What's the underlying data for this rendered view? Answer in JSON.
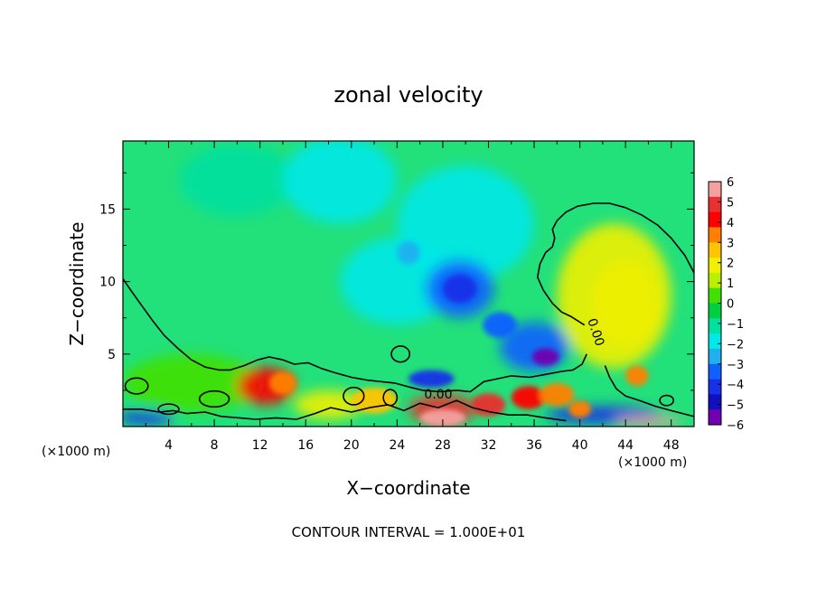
{
  "chart_data": {
    "type": "heatmap",
    "title": "zonal velocity",
    "xlabel": "X−coordinate",
    "ylabel": "Z−coordinate",
    "x_unit_left": "(×1000 m)",
    "x_unit_right": "(×1000 m)",
    "xlim": [
      0,
      50
    ],
    "ylim": [
      0,
      19.7
    ],
    "x_ticks": [
      "4",
      "8",
      "12",
      "16",
      "20",
      "24",
      "28",
      "32",
      "36",
      "40",
      "44",
      "48"
    ],
    "y_ticks": [
      "5",
      "10",
      "15"
    ],
    "colorbar": {
      "labels": [
        "6",
        "5",
        "4",
        "3",
        "2",
        "1",
        "0",
        "−1",
        "−2",
        "−3",
        "−4",
        "−5",
        "−6"
      ],
      "range": [
        -6,
        6
      ],
      "colors": [
        "#f4a0a0",
        "#e83030",
        "#ff0000",
        "#ff8000",
        "#ffc400",
        "#f0f000",
        "#b8f000",
        "#40e000",
        "#00d040",
        "#00e0a0",
        "#00e8e8",
        "#20b0f0",
        "#1060ff",
        "#1830e8",
        "#1010c0",
        "#7000b0"
      ]
    },
    "contour_labels": [
      "0.00",
      "0.00"
    ],
    "footer": "CONTOUR INTERVAL = 1.000E+01",
    "field_blobs": [
      {
        "x": 10,
        "z": 17,
        "rx": 5,
        "rz": 2.5,
        "value": -1.2
      },
      {
        "x": 19,
        "z": 17,
        "rx": 5,
        "rz": 3,
        "value": -2.0
      },
      {
        "x": 30,
        "z": 14,
        "rx": 6,
        "rz": 4,
        "value": -2.0
      },
      {
        "x": 24,
        "z": 10,
        "rx": 5,
        "rz": 3,
        "value": -1.8
      },
      {
        "x": 29.5,
        "z": 9.5,
        "rx": 3,
        "rz": 2,
        "value": -3.4
      },
      {
        "x": 29.5,
        "z": 9.5,
        "rx": 1.5,
        "rz": 1,
        "value": -4.0
      },
      {
        "x": 36,
        "z": 5.5,
        "rx": 3,
        "rz": 1.7,
        "value": -3.6
      },
      {
        "x": 37,
        "z": 4.8,
        "rx": 1.2,
        "rz": 0.6,
        "value": -5.5
      },
      {
        "x": 33,
        "z": 7,
        "rx": 1.5,
        "rz": 0.9,
        "value": -3.2
      },
      {
        "x": 25,
        "z": 12,
        "rx": 1,
        "rz": 0.8,
        "value": -2.8
      },
      {
        "x": 27,
        "z": 3.3,
        "rx": 2,
        "rz": 0.6,
        "value": -3.8
      },
      {
        "x": 43,
        "z": 9,
        "rx": 5,
        "rz": 5,
        "value": 1.6
      },
      {
        "x": 44,
        "z": 8.5,
        "rx": 3,
        "rz": 3,
        "value": 2.2
      },
      {
        "x": 6,
        "z": 3,
        "rx": 6,
        "rz": 2,
        "value": 0.4
      },
      {
        "x": 12.5,
        "z": 2.8,
        "rx": 2.5,
        "rz": 1.3,
        "value": 4.4
      },
      {
        "x": 14,
        "z": 3,
        "rx": 1.2,
        "rz": 0.8,
        "value": 3.0
      },
      {
        "x": 18,
        "z": 1.5,
        "rx": 3,
        "rz": 1,
        "value": 1.8
      },
      {
        "x": 22,
        "z": 1.8,
        "rx": 2,
        "rz": 0.9,
        "value": 2.6
      },
      {
        "x": 28,
        "z": 1.2,
        "rx": 3,
        "rz": 1,
        "value": 5.2
      },
      {
        "x": 28,
        "z": 0.6,
        "rx": 2,
        "rz": 0.6,
        "value": 6.0
      },
      {
        "x": 32,
        "z": 1.5,
        "rx": 1.5,
        "rz": 0.8,
        "value": 4.5
      },
      {
        "x": 35.5,
        "z": 2,
        "rx": 1.5,
        "rz": 0.8,
        "value": 3.8
      },
      {
        "x": 38,
        "z": 2.2,
        "rx": 1.5,
        "rz": 0.8,
        "value": 3.2
      },
      {
        "x": 40,
        "z": 1.2,
        "rx": 1,
        "rz": 0.6,
        "value": 3.5
      },
      {
        "x": 45,
        "z": 3.5,
        "rx": 1,
        "rz": 0.7,
        "value": 3.5
      },
      {
        "x": 2,
        "z": 0.6,
        "rx": 2.5,
        "rz": 0.45,
        "value": -3.8
      },
      {
        "x": 42,
        "z": 0.8,
        "rx": 5,
        "rz": 0.6,
        "value": -4.2
      },
      {
        "x": 46,
        "z": 0.4,
        "rx": 3,
        "rz": 0.35,
        "value": 6.0
      }
    ],
    "zero_contours": [
      [
        [
          0,
          10.2
        ],
        [
          0.6,
          9.5
        ],
        [
          1.6,
          8.4
        ],
        [
          2.6,
          7.3
        ],
        [
          3.6,
          6.3
        ],
        [
          4.8,
          5.4
        ],
        [
          6,
          4.6
        ],
        [
          7.2,
          4.1
        ],
        [
          8.4,
          3.9
        ],
        [
          9.4,
          3.9
        ],
        [
          10.6,
          4.2
        ],
        [
          11.8,
          4.6
        ],
        [
          12.8,
          4.8
        ],
        [
          14,
          4.6
        ],
        [
          15,
          4.3
        ],
        [
          16.2,
          4.4
        ],
        [
          17.4,
          4.0
        ],
        [
          18.6,
          3.7
        ],
        [
          20,
          3.4
        ],
        [
          21.4,
          3.2
        ],
        [
          22.6,
          3.1
        ],
        [
          23.8,
          3.0
        ],
        [
          25.2,
          2.7
        ],
        [
          26.2,
          2.5
        ],
        [
          27.8,
          2.4
        ],
        [
          29.2,
          2.5
        ],
        [
          30.4,
          2.4
        ],
        [
          31.6,
          3.1
        ],
        [
          32.8,
          3.3
        ],
        [
          34,
          3.5
        ],
        [
          35.6,
          3.4
        ],
        [
          37,
          3.6
        ],
        [
          38.4,
          3.8
        ],
        [
          39.4,
          3.9
        ],
        [
          40.2,
          4.3
        ],
        [
          40.6,
          5.0
        ]
      ],
      [
        [
          40.4,
          7.0
        ],
        [
          39.2,
          7.6
        ],
        [
          38.4,
          7.9
        ],
        [
          37.6,
          8.5
        ],
        [
          36.8,
          9.4
        ],
        [
          36.3,
          10.3
        ],
        [
          36.5,
          11.2
        ],
        [
          37.0,
          12.0
        ],
        [
          37.6,
          12.4
        ],
        [
          37.8,
          13.0
        ],
        [
          37.6,
          13.6
        ],
        [
          38.0,
          14.2
        ],
        [
          38.8,
          14.8
        ],
        [
          39.8,
          15.2
        ],
        [
          41.2,
          15.4
        ],
        [
          42.6,
          15.4
        ],
        [
          44,
          15.1
        ],
        [
          45.4,
          14.6
        ],
        [
          46.8,
          13.9
        ],
        [
          48,
          13.0
        ],
        [
          49.2,
          11.8
        ],
        [
          50,
          10.6
        ]
      ],
      [
        [
          42.2,
          4.2
        ],
        [
          42.6,
          3.4
        ],
        [
          43.2,
          2.6
        ],
        [
          44,
          2.1
        ],
        [
          45.2,
          1.8
        ],
        [
          46.6,
          1.4
        ],
        [
          48,
          1.1
        ],
        [
          49,
          0.9
        ],
        [
          50,
          0.7
        ]
      ],
      [
        [
          0,
          1.2
        ],
        [
          1.6,
          1.2
        ],
        [
          3.2,
          1.0
        ],
        [
          4.4,
          1.1
        ],
        [
          5.6,
          0.9
        ],
        [
          7.2,
          1.0
        ],
        [
          8.6,
          0.7
        ],
        [
          10.2,
          0.6
        ],
        [
          11.6,
          0.5
        ],
        [
          13.4,
          0.6
        ],
        [
          15.2,
          0.5
        ],
        [
          16.8,
          0.9
        ],
        [
          18.2,
          1.3
        ],
        [
          20,
          1.0
        ],
        [
          21.6,
          1.3
        ],
        [
          23.2,
          1.5
        ],
        [
          24.6,
          1.1
        ],
        [
          26,
          1.6
        ],
        [
          27.6,
          1.3
        ],
        [
          29.2,
          1.8
        ],
        [
          30.6,
          1.3
        ],
        [
          32.2,
          1.0
        ],
        [
          33.8,
          0.8
        ],
        [
          35.4,
          0.8
        ],
        [
          37,
          0.6
        ],
        [
          38.8,
          0.4
        ]
      ]
    ],
    "small_loops": [
      {
        "x": 1.2,
        "z": 2.8,
        "rx": 1.0,
        "rz": 0.55
      },
      {
        "x": 8.0,
        "z": 1.9,
        "rx": 1.3,
        "rz": 0.55
      },
      {
        "x": 4.0,
        "z": 1.2,
        "rx": 0.9,
        "rz": 0.35
      },
      {
        "x": 20.2,
        "z": 2.1,
        "rx": 0.9,
        "rz": 0.6
      },
      {
        "x": 23.4,
        "z": 2.0,
        "rx": 0.6,
        "rz": 0.55
      },
      {
        "x": 24.3,
        "z": 5.0,
        "rx": 0.8,
        "rz": 0.55
      },
      {
        "x": 47.6,
        "z": 1.8,
        "rx": 0.6,
        "rz": 0.35
      }
    ]
  }
}
